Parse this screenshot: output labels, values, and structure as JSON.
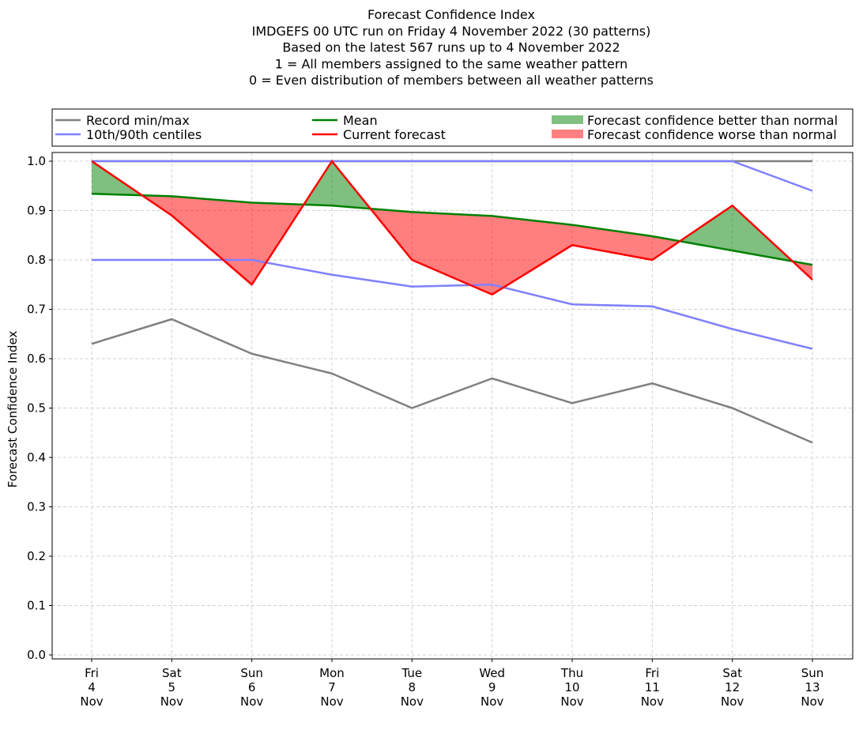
{
  "chart_data": {
    "type": "line",
    "title": [
      "Forecast Confidence Index",
      "IMDGEFS 00 UTC run on Friday 4 November 2022 (30 patterns)",
      "Based on the latest 567 runs up to 4 November 2022",
      "1 = All members assigned to the same weather pattern",
      "0 = Even distribution of members between all weather patterns"
    ],
    "ylabel": "Forecast Confidence Index",
    "ylim": [
      0.0,
      1.0
    ],
    "yticks": [
      "0.0",
      "0.1",
      "0.2",
      "0.3",
      "0.4",
      "0.5",
      "0.6",
      "0.7",
      "0.8",
      "0.9",
      "1.0"
    ],
    "grid": true,
    "categories": [
      [
        "Fri",
        "4",
        "Nov"
      ],
      [
        "Sat",
        "5",
        "Nov"
      ],
      [
        "Sun",
        "6",
        "Nov"
      ],
      [
        "Mon",
        "7",
        "Nov"
      ],
      [
        "Tue",
        "8",
        "Nov"
      ],
      [
        "Wed",
        "9",
        "Nov"
      ],
      [
        "Thu",
        "10",
        "Nov"
      ],
      [
        "Fri",
        "11",
        "Nov"
      ],
      [
        "Sat",
        "12",
        "Nov"
      ],
      [
        "Sun",
        "13",
        "Nov"
      ]
    ],
    "series": [
      {
        "name": "Record min/max",
        "role": "record_max",
        "color": "#808080",
        "values": [
          1.0,
          1.0,
          1.0,
          1.0,
          1.0,
          1.0,
          1.0,
          1.0,
          1.0,
          1.0
        ]
      },
      {
        "name": "Record min/max",
        "role": "record_min",
        "color": "#808080",
        "values": [
          0.63,
          0.68,
          0.61,
          0.57,
          0.5,
          0.56,
          0.51,
          0.55,
          0.5,
          0.43
        ]
      },
      {
        "name": "10th/90th centiles",
        "role": "p90",
        "color": "#8080ff",
        "values": [
          1.0,
          1.0,
          1.0,
          1.0,
          1.0,
          1.0,
          1.0,
          1.0,
          1.0,
          0.94
        ]
      },
      {
        "name": "10th/90th centiles",
        "role": "p10",
        "color": "#8080ff",
        "values": [
          0.8,
          0.8,
          0.8,
          0.77,
          0.746,
          0.75,
          0.71,
          0.706,
          0.66,
          0.62
        ]
      },
      {
        "name": "Mean",
        "role": "mean",
        "color": "#008000",
        "values": [
          0.934,
          0.929,
          0.916,
          0.91,
          0.897,
          0.889,
          0.871,
          0.848,
          0.819,
          0.79
        ]
      },
      {
        "name": "Current forecast",
        "role": "current",
        "color": "#ff0000",
        "values": [
          1.0,
          0.89,
          0.75,
          1.0,
          0.8,
          0.73,
          0.83,
          0.8,
          0.91,
          0.76
        ]
      }
    ],
    "fills": {
      "better": {
        "label": "Forecast confidence better than normal",
        "color": "#008000"
      },
      "worse": {
        "label": "Forecast confidence worse than normal",
        "color": "#ff0000"
      }
    },
    "legend": {
      "placement": "top",
      "entries": [
        {
          "label": "Record min/max",
          "kind": "line",
          "color": "#808080"
        },
        {
          "label": "10th/90th centiles",
          "kind": "line",
          "color": "#8080ff"
        },
        {
          "label": "Mean",
          "kind": "line",
          "color": "#008000"
        },
        {
          "label": "Current forecast",
          "kind": "line",
          "color": "#ff0000"
        },
        {
          "label": "Forecast confidence better than normal",
          "kind": "patch",
          "color": "#80c080"
        },
        {
          "label": "Forecast confidence worse than normal",
          "kind": "patch",
          "color": "#ff8080"
        }
      ]
    }
  }
}
